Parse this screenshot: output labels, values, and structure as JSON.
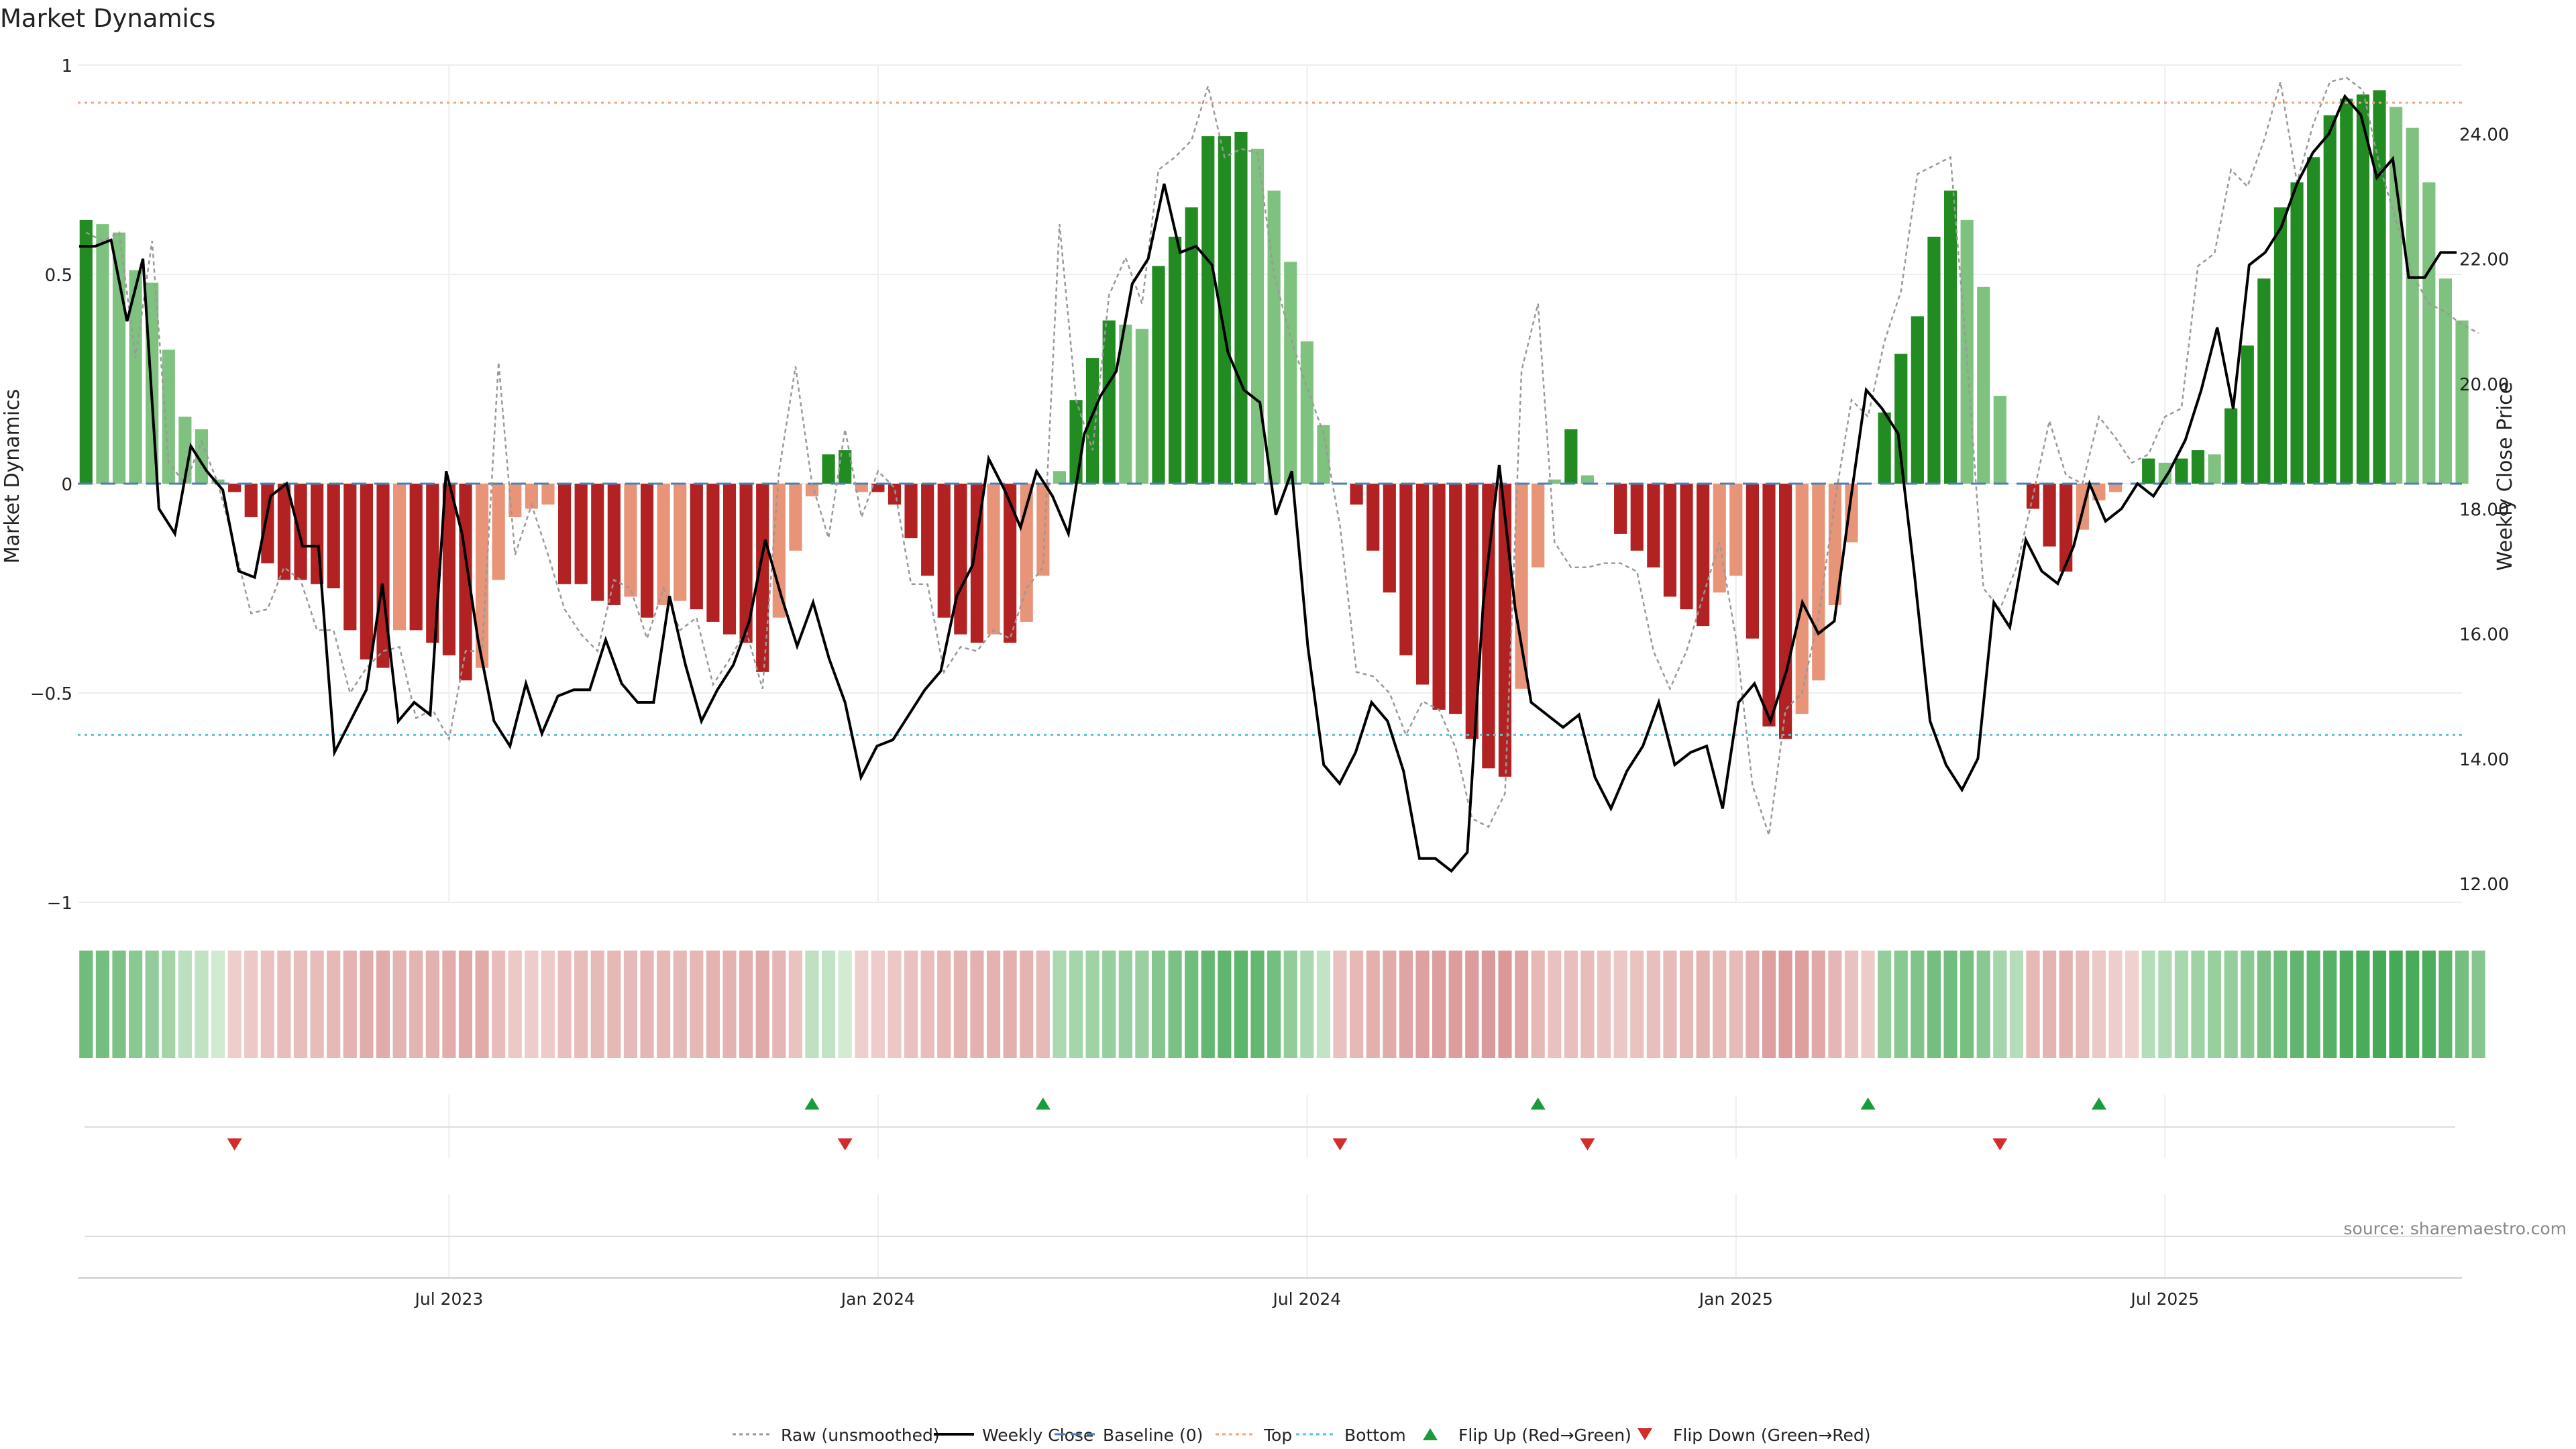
{
  "chart_data": {
    "type": "bar",
    "title": "Market Dynamics",
    "ylabel": "Market Dynamics",
    "y2label": "Weekly Close Price",
    "ylim": [
      -1,
      1
    ],
    "y2lim": [
      11.7,
      25.1
    ],
    "yticks": [
      1,
      0.5,
      0,
      -0.5,
      -1
    ],
    "ytick_labels": [
      "1",
      "0.5",
      "0",
      "−0.5",
      "−1"
    ],
    "y2ticks": [
      24,
      22,
      20,
      18,
      16,
      14,
      12
    ],
    "y2tick_labels": [
      "24.00",
      "22.00",
      "20.00",
      "18.00",
      "16.00",
      "14.00",
      "12.00"
    ],
    "xticks": [
      {
        "label": "Jul 2023",
        "week": 22
      },
      {
        "label": "Jan 2024",
        "week": 48
      },
      {
        "label": "Jul 2024",
        "week": 74
      },
      {
        "label": "Jan 2025",
        "week": 100
      },
      {
        "label": "Jul 2025",
        "week": 126
      }
    ],
    "top_level": 0.91,
    "bottom_level": -0.6,
    "dynamics": [
      0.63,
      0.62,
      0.6,
      0.51,
      0.48,
      0.32,
      0.16,
      0.13,
      0.01,
      -0.02,
      -0.08,
      -0.19,
      -0.23,
      -0.23,
      -0.24,
      -0.25,
      -0.35,
      -0.42,
      -0.44,
      -0.35,
      -0.35,
      -0.38,
      -0.41,
      -0.47,
      -0.44,
      -0.23,
      -0.08,
      -0.06,
      -0.05,
      -0.24,
      -0.24,
      -0.28,
      -0.29,
      -0.27,
      -0.32,
      -0.29,
      -0.28,
      -0.3,
      -0.33,
      -0.36,
      -0.38,
      -0.45,
      -0.32,
      -0.16,
      -0.03,
      0.07,
      0.08,
      -0.02,
      -0.02,
      -0.05,
      -0.13,
      -0.22,
      -0.32,
      -0.36,
      -0.38,
      -0.36,
      -0.38,
      -0.33,
      -0.22,
      0.03,
      0.2,
      0.3,
      0.39,
      0.38,
      0.37,
      0.52,
      0.59,
      0.66,
      0.83,
      0.83,
      0.84,
      0.8,
      0.7,
      0.53,
      0.34,
      0.14,
      0.0,
      -0.05,
      -0.16,
      -0.26,
      -0.41,
      -0.48,
      -0.54,
      -0.55,
      -0.61,
      -0.68,
      -0.7,
      -0.49,
      -0.2,
      0.01,
      0.13,
      0.02,
      0.0,
      -0.12,
      -0.16,
      -0.2,
      -0.27,
      -0.3,
      -0.34,
      -0.26,
      -0.22,
      -0.37,
      -0.58,
      -0.61,
      -0.55,
      -0.47,
      -0.29,
      -0.14,
      0.0,
      0.17,
      0.31,
      0.4,
      0.59,
      0.7,
      0.63,
      0.47,
      0.21,
      0.0,
      -0.06,
      -0.15,
      -0.21,
      -0.11,
      -0.04,
      -0.02,
      0.0,
      0.06,
      0.05,
      0.06,
      0.08,
      0.07,
      0.18,
      0.33,
      0.49,
      0.66,
      0.72,
      0.78,
      0.88,
      0.92,
      0.93,
      0.94,
      0.9,
      0.85,
      0.72,
      0.49,
      0.39
    ],
    "raw": [
      0.6,
      0.58,
      0.6,
      0.3,
      0.58,
      0.05,
      0.0,
      0.1,
      0.0,
      -0.15,
      -0.31,
      -0.3,
      -0.2,
      -0.23,
      -0.35,
      -0.35,
      -0.5,
      -0.44,
      -0.4,
      -0.39,
      -0.56,
      -0.54,
      -0.61,
      -0.4,
      -0.4,
      0.29,
      -0.17,
      -0.05,
      -0.17,
      -0.3,
      -0.36,
      -0.4,
      -0.23,
      -0.25,
      -0.37,
      -0.25,
      -0.35,
      -0.32,
      -0.48,
      -0.42,
      -0.35,
      -0.49,
      0.03,
      0.28,
      0.0,
      -0.13,
      0.13,
      -0.08,
      0.03,
      -0.01,
      -0.24,
      -0.24,
      -0.45,
      -0.39,
      -0.4,
      -0.35,
      -0.37,
      -0.25,
      -0.2,
      0.62,
      0.2,
      0.08,
      0.45,
      0.54,
      0.43,
      0.75,
      0.78,
      0.82,
      0.95,
      0.78,
      0.8,
      0.79,
      0.5,
      0.35,
      0.23,
      0.12,
      -0.1,
      -0.45,
      -0.46,
      -0.5,
      -0.6,
      -0.52,
      -0.54,
      -0.63,
      -0.8,
      -0.82,
      -0.74,
      0.27,
      0.43,
      -0.14,
      -0.2,
      -0.2,
      -0.19,
      -0.19,
      -0.21,
      -0.4,
      -0.49,
      -0.4,
      -0.27,
      -0.14,
      -0.37,
      -0.72,
      -0.84,
      -0.54,
      -0.5,
      -0.32,
      -0.04,
      0.2,
      0.16,
      0.34,
      0.46,
      0.74,
      0.76,
      0.78,
      0.3,
      -0.25,
      -0.3,
      -0.2,
      -0.03,
      0.15,
      0.02,
      0.0,
      0.16,
      0.11,
      0.05,
      0.07,
      0.16,
      0.18,
      0.52,
      0.55,
      0.75,
      0.71,
      0.82,
      0.96,
      0.72,
      0.86,
      0.96,
      0.97,
      0.94,
      0.76,
      0.63,
      0.5,
      0.43,
      0.41,
      0.38,
      0.36
    ],
    "weekly_close": [
      22.2,
      22.2,
      22.3,
      21.0,
      22.0,
      18.0,
      17.6,
      19.0,
      18.6,
      18.3,
      17.0,
      16.9,
      18.2,
      18.4,
      17.4,
      17.4,
      14.1,
      14.6,
      15.1,
      16.8,
      14.6,
      14.9,
      14.7,
      18.6,
      17.6,
      15.9,
      14.6,
      14.2,
      15.2,
      14.4,
      15.0,
      15.1,
      15.1,
      15.9,
      15.2,
      14.9,
      14.9,
      16.6,
      15.5,
      14.6,
      15.1,
      15.5,
      16.2,
      17.5,
      16.6,
      15.8,
      16.5,
      15.6,
      14.9,
      13.7,
      14.2,
      14.3,
      14.7,
      15.1,
      15.4,
      16.6,
      17.1,
      18.8,
      18.3,
      17.7,
      18.6,
      18.2,
      17.6,
      19.2,
      19.8,
      20.2,
      21.6,
      22.0,
      23.2,
      22.1,
      22.2,
      21.9,
      20.5,
      19.9,
      19.7,
      17.9,
      18.6,
      15.8,
      13.9,
      13.6,
      14.1,
      14.9,
      14.6,
      13.8,
      12.4,
      12.4,
      12.2,
      12.5,
      16.5,
      18.7,
      16.4,
      14.9,
      14.7,
      14.5,
      14.7,
      13.7,
      13.2,
      13.8,
      14.2,
      14.9,
      13.9,
      14.1,
      14.2,
      13.2,
      14.9,
      15.2,
      14.6,
      15.4,
      16.5,
      16.0,
      16.2,
      18.1,
      19.9,
      19.6,
      19.2,
      17.0,
      14.6,
      13.9,
      13.5,
      14.0,
      16.5,
      16.1,
      17.5,
      17.0,
      16.8,
      17.4,
      18.4,
      17.8,
      18.0,
      18.4,
      18.2,
      18.6,
      19.1,
      19.9,
      20.9,
      19.6,
      21.9,
      22.1,
      22.5,
      23.2,
      23.7,
      24.0,
      24.6,
      24.3,
      23.3,
      23.6,
      21.7,
      21.7,
      22.1,
      22.1
    ],
    "heat_strip": [
      0.63,
      0.6,
      0.55,
      0.48,
      0.42,
      0.32,
      0.16,
      0.13,
      0.03,
      -0.06,
      -0.12,
      -0.19,
      -0.23,
      -0.24,
      -0.26,
      -0.3,
      -0.35,
      -0.42,
      -0.44,
      -0.36,
      -0.34,
      -0.37,
      -0.41,
      -0.47,
      -0.44,
      -0.26,
      -0.12,
      -0.08,
      -0.1,
      -0.22,
      -0.25,
      -0.28,
      -0.29,
      -0.28,
      -0.32,
      -0.3,
      -0.29,
      -0.31,
      -0.34,
      -0.36,
      -0.38,
      -0.45,
      -0.32,
      -0.18,
      0.14,
      0.12,
      0.02,
      -0.05,
      -0.08,
      -0.14,
      -0.2,
      -0.24,
      -0.3,
      -0.35,
      -0.37,
      -0.36,
      -0.38,
      -0.34,
      -0.28,
      0.25,
      0.3,
      0.34,
      0.39,
      0.38,
      0.37,
      0.5,
      0.56,
      0.62,
      0.7,
      0.72,
      0.74,
      0.7,
      0.6,
      0.42,
      0.26,
      0.12,
      -0.2,
      -0.3,
      -0.38,
      -0.44,
      -0.5,
      -0.54,
      -0.56,
      -0.58,
      -0.6,
      -0.62,
      -0.64,
      -0.5,
      -0.3,
      -0.2,
      -0.22,
      -0.26,
      -0.18,
      -0.14,
      -0.18,
      -0.22,
      -0.27,
      -0.3,
      -0.34,
      -0.3,
      -0.28,
      -0.4,
      -0.55,
      -0.6,
      -0.55,
      -0.47,
      -0.32,
      -0.2,
      -0.1,
      0.4,
      0.48,
      0.52,
      0.6,
      0.62,
      0.58,
      0.47,
      0.3,
      0.2,
      -0.3,
      -0.34,
      -0.36,
      -0.28,
      -0.12,
      -0.06,
      -0.02,
      0.2,
      0.24,
      0.28,
      0.34,
      0.38,
      0.4,
      0.46,
      0.56,
      0.64,
      0.72,
      0.74,
      0.78,
      0.84,
      0.86,
      0.88,
      0.88,
      0.86,
      0.84,
      0.74,
      0.6,
      0.5
    ],
    "flip_up_weeks": [
      44,
      58,
      88,
      108,
      122
    ],
    "flip_down_weeks": [
      9,
      46,
      76,
      91,
      116
    ],
    "legend": [
      {
        "label": "Raw (unsmoothed)",
        "kind": "dotted-line",
        "color": "#999999"
      },
      {
        "label": "Weekly Close",
        "kind": "solid-line",
        "color": "#000000"
      },
      {
        "label": "Baseline (0)",
        "kind": "dashed-line",
        "color": "#4f7fb0"
      },
      {
        "label": "Top",
        "kind": "dotted-line",
        "color": "#f2a778"
      },
      {
        "label": "Bottom",
        "kind": "dotted-line",
        "color": "#5bc3d2"
      },
      {
        "label": "Flip Up (Red→Green)",
        "kind": "triangle-up",
        "color": "#1a9c3a"
      },
      {
        "label": "Flip Down (Green→Red)",
        "kind": "triangle-down",
        "color": "#d42b2b"
      }
    ],
    "colors": {
      "strong_green": "#228b22",
      "light_green": "#7fc27f",
      "strong_red": "#b22222",
      "light_red": "#e89478",
      "grid": "#eeeeee",
      "axis": "#cccccc"
    }
  },
  "source_note": "source: sharemaestro.com"
}
